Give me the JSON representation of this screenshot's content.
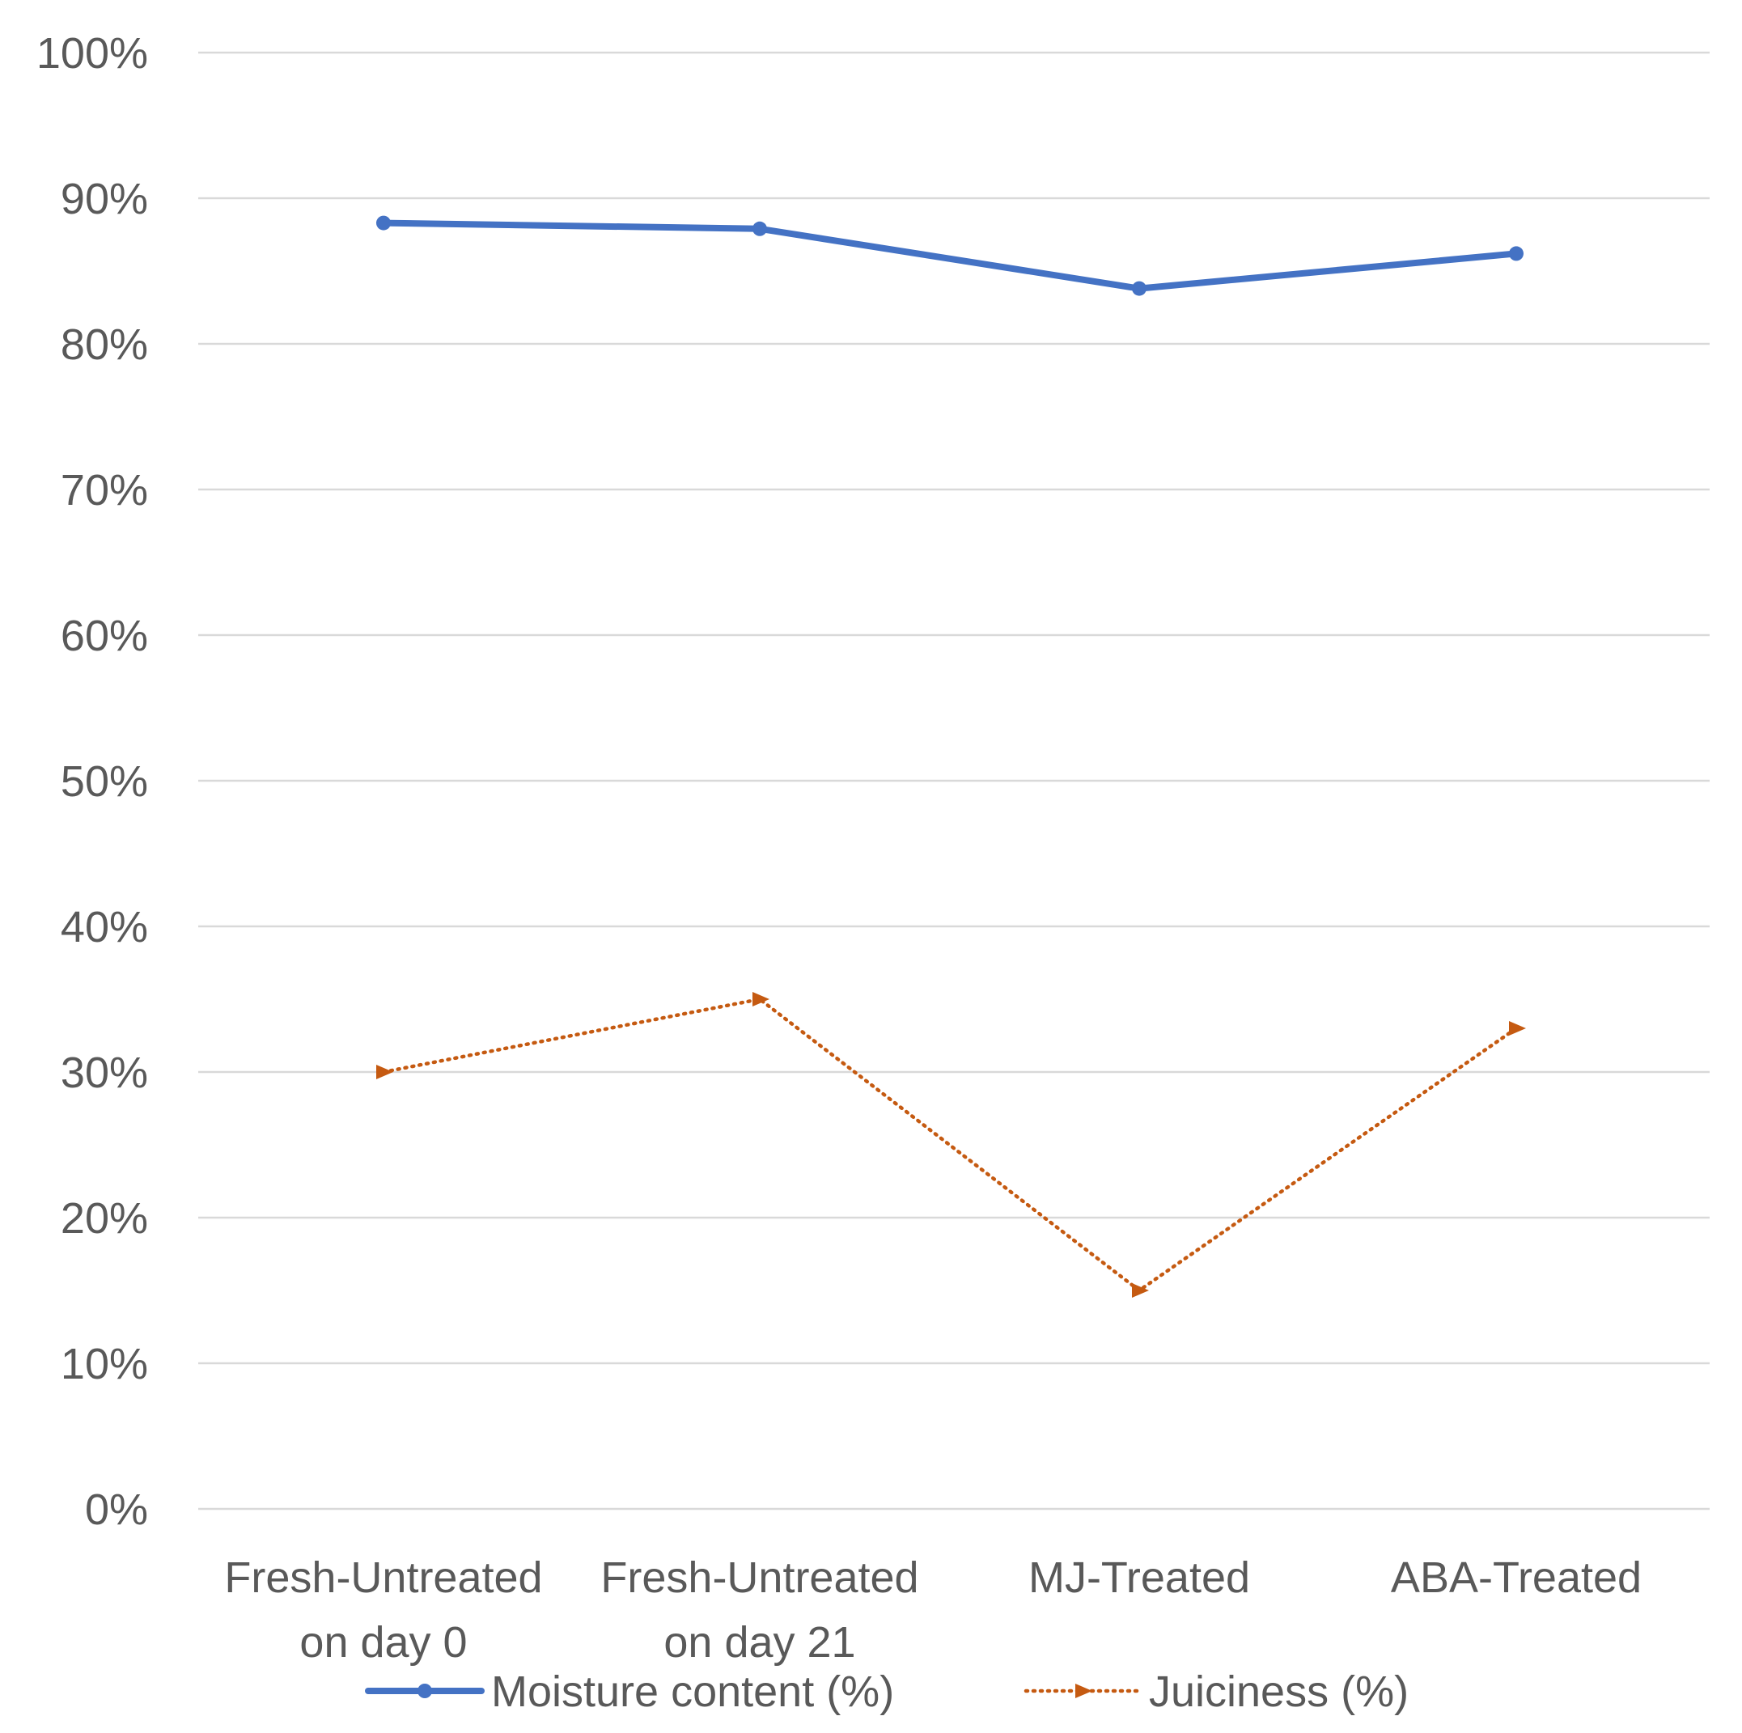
{
  "chart_data": {
    "type": "line",
    "title": "",
    "xlabel": "",
    "ylabel": "",
    "ylim": [
      0,
      100
    ],
    "ytick_step": 10,
    "yticks": [
      "0%",
      "10%",
      "20%",
      "30%",
      "40%",
      "50%",
      "60%",
      "70%",
      "80%",
      "90%",
      "100%"
    ],
    "grid": true,
    "legend_position": "bottom",
    "categories": [
      [
        "Fresh-Untreated",
        "on day 0"
      ],
      [
        "Fresh-Untreated",
        "on day 21"
      ],
      [
        "MJ-Treated"
      ],
      [
        "ABA-Treated"
      ]
    ],
    "series": [
      {
        "name": "Moisture content (%)",
        "values": [
          88.3,
          87.9,
          83.8,
          86.2
        ],
        "color": "#4472c4",
        "line_style": "solid",
        "marker": "circle"
      },
      {
        "name": "Juiciness (%)",
        "values": [
          30,
          35,
          15,
          33
        ],
        "color": "#c55a11",
        "line_style": "dotted",
        "marker": "triangle"
      }
    ]
  }
}
